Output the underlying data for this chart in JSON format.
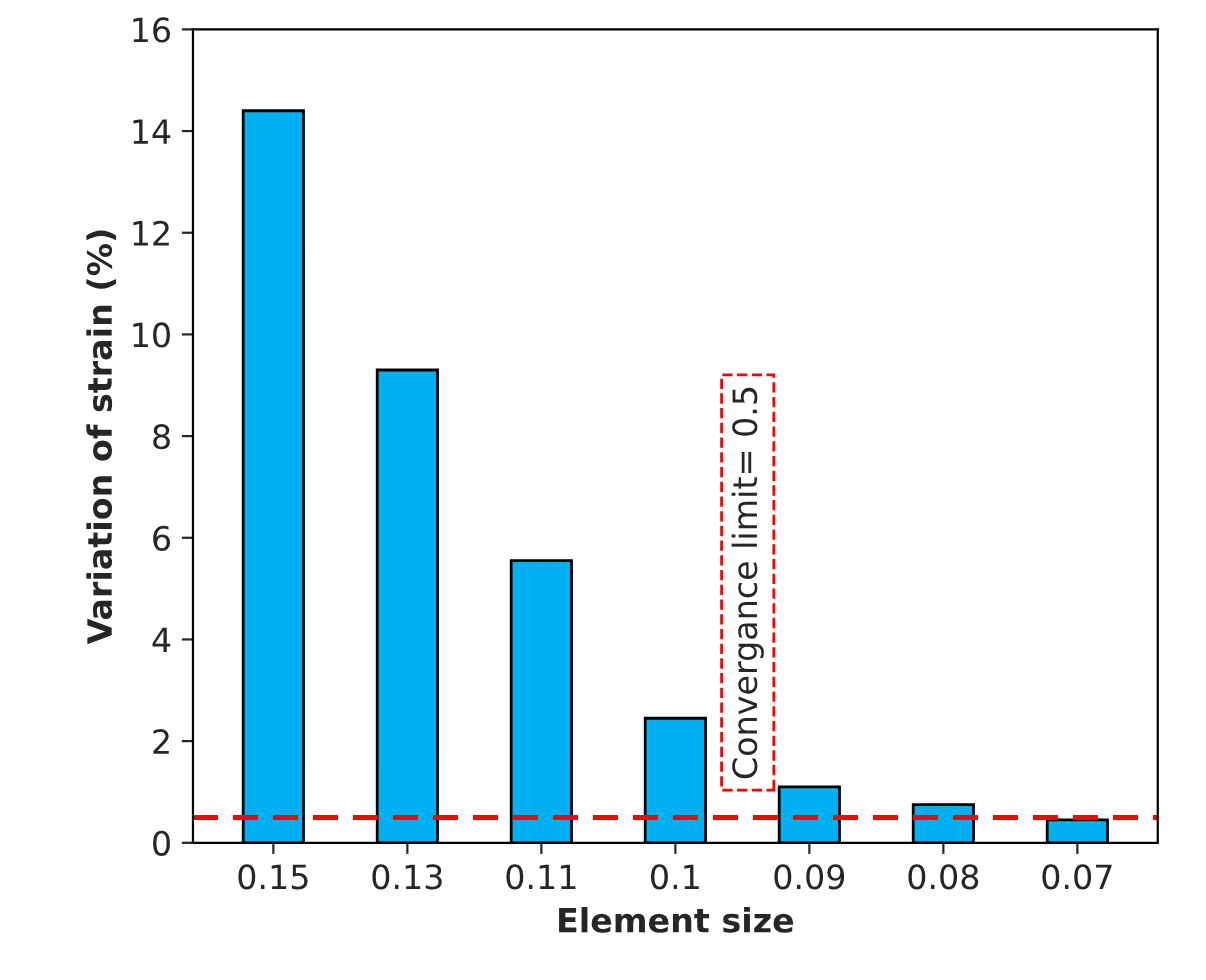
{
  "chart_data": {
    "type": "bar",
    "xlabel": "Element size",
    "ylabel": "Variation of strain (%)",
    "categories": [
      "0.15",
      "0.13",
      "0.11",
      "0.1",
      "0.09",
      "0.08",
      "0.07"
    ],
    "values": [
      14.4,
      9.3,
      5.55,
      2.45,
      1.1,
      0.75,
      0.45
    ],
    "color": "#00b0f0",
    "ylim": [
      0,
      16
    ],
    "yticks": [
      0,
      2,
      4,
      6,
      8,
      10,
      12,
      14,
      16
    ],
    "ref_lines": [
      {
        "axis": "y",
        "value": 0.5,
        "color": "#ff0000",
        "line_style": "dashed"
      }
    ],
    "annotations": [
      "Convergance limit= 0.5"
    ],
    "grid": false,
    "legend": false
  }
}
